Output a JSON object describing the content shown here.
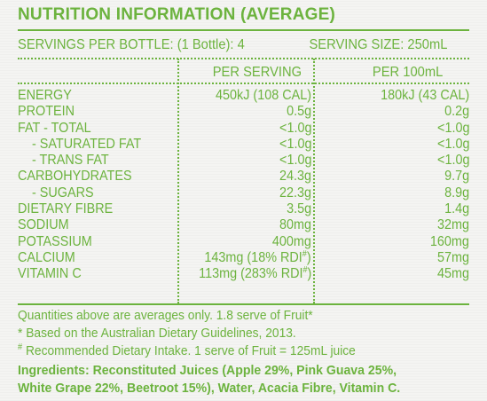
{
  "title": "NUTRITION INFORMATION (AVERAGE)",
  "servings_per_bottle": "SERVINGS PER BOTTLE: (1 Bottle): 4",
  "serving_size": "SERVING SIZE: 250mL",
  "columns": {
    "per_serving": "PER SERVING",
    "per_100ml": "PER 100mL"
  },
  "rows": [
    {
      "name": "ENERGY",
      "per_serving": "450kJ (108 CAL)",
      "per_100ml": "180kJ (43 CAL)"
    },
    {
      "name": "PROTEIN",
      "per_serving": "0.5g",
      "per_100ml": "0.2g"
    },
    {
      "name": "FAT - TOTAL",
      "per_serving": "<1.0g",
      "per_100ml": "<1.0g"
    },
    {
      "name": "- SATURATED FAT",
      "per_serving": "<1.0g",
      "per_100ml": "<1.0g"
    },
    {
      "name": "- TRANS FAT",
      "per_serving": "<1.0g",
      "per_100ml": "<1.0g"
    },
    {
      "name": "CARBOHYDRATES",
      "per_serving": "24.3g",
      "per_100ml": "9.7g"
    },
    {
      "name": "- SUGARS",
      "per_serving": "22.3g",
      "per_100ml": "8.9g"
    },
    {
      "name": "DIETARY FIBRE",
      "per_serving": "3.5g",
      "per_100ml": "1.4g"
    },
    {
      "name": "SODIUM",
      "per_serving": "80mg",
      "per_100ml": "32mg"
    },
    {
      "name": "POTASSIUM",
      "per_serving": "400mg",
      "per_100ml": "160mg"
    },
    {
      "name": "CALCIUM",
      "per_serving": "143mg (18% RDI",
      "per_100ml": "57mg",
      "mark": "#",
      "close": ")"
    },
    {
      "name": "VITAMIN C",
      "per_serving": "113mg (283% RDI",
      "per_100ml": "45mg",
      "mark": "#",
      "close": ")"
    }
  ],
  "footnotes": {
    "averages": "Quantities above are averages only. 1.8 serve of Fruit*",
    "guidelines": "* Based on the Australian Dietary Guidelines, 2013.",
    "rdi_mark": "#",
    "rdi": " Recommended Dietary Intake.  1 serve of Fruit = 125mL juice"
  },
  "ingredients": {
    "line1": "Ingredients: Reconstituted Juices (Apple 29%, Pink Guava 25%,",
    "line2": "White Grape 22%, Beetroot 15%), Water, Acacia Fibre, Vitamin C."
  },
  "colors": {
    "text": "#6cb33e",
    "background": "#f4f4f2"
  }
}
